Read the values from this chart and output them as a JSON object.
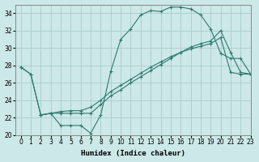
{
  "xlabel": "Humidex (Indice chaleur)",
  "bg_color": "#cce8e8",
  "line_color": "#2d7a6e",
  "grid_color": "#aacccc",
  "ylim": [
    20,
    35
  ],
  "xlim": [
    -0.5,
    23
  ],
  "yticks": [
    20,
    22,
    24,
    26,
    28,
    30,
    32,
    34
  ],
  "xticks": [
    0,
    1,
    2,
    3,
    4,
    5,
    6,
    7,
    8,
    9,
    10,
    11,
    12,
    13,
    14,
    15,
    16,
    17,
    18,
    19,
    20,
    21,
    22,
    23
  ],
  "line1_x": [
    0,
    1,
    2,
    3,
    4,
    5,
    6,
    7,
    8,
    9,
    10,
    11,
    12,
    13,
    14,
    15,
    16,
    17,
    18,
    19,
    20,
    21,
    22,
    23
  ],
  "line1_y": [
    27.8,
    27.0,
    22.3,
    22.5,
    21.1,
    21.1,
    21.1,
    20.2,
    22.3,
    27.3,
    31.0,
    32.2,
    33.8,
    34.3,
    34.2,
    34.7,
    34.7,
    34.5,
    33.8,
    32.2,
    29.4,
    28.8,
    28.8,
    27.0
  ],
  "line2_x": [
    0,
    1,
    2,
    3,
    4,
    5,
    6,
    7,
    8,
    9,
    10,
    11,
    12,
    13,
    14,
    15,
    16,
    17,
    18,
    19,
    20,
    21,
    22,
    23
  ],
  "line2_y": [
    27.8,
    27.0,
    22.3,
    22.5,
    22.5,
    22.5,
    22.5,
    22.5,
    23.5,
    24.5,
    25.2,
    26.0,
    26.7,
    27.4,
    28.1,
    28.8,
    29.5,
    30.1,
    30.5,
    30.8,
    32.0,
    29.5,
    27.2,
    27.0
  ],
  "line3_x": [
    2,
    3,
    4,
    5,
    6,
    7,
    8,
    9,
    10,
    11,
    12,
    13,
    14,
    15,
    16,
    17,
    18,
    19,
    20,
    21,
    22,
    23
  ],
  "line3_y": [
    22.3,
    22.5,
    22.7,
    22.8,
    22.8,
    23.2,
    24.0,
    25.0,
    25.7,
    26.4,
    27.1,
    27.8,
    28.4,
    29.0,
    29.5,
    29.9,
    30.2,
    30.5,
    31.2,
    27.2,
    27.0,
    27.0
  ]
}
